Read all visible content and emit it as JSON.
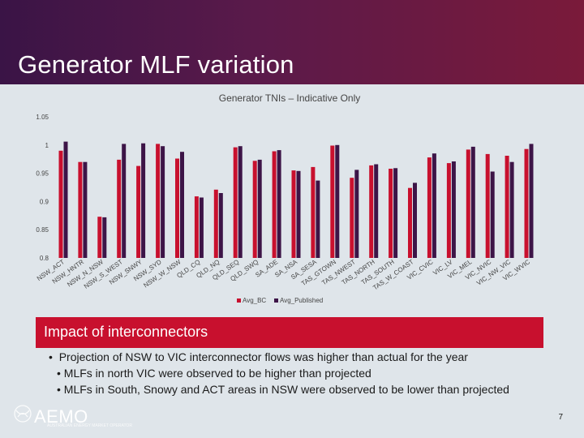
{
  "slide": {
    "title": "Generator MLF variation",
    "banner_title": "Impact of interconnectors",
    "bullets": [
      "Projection of NSW to VIC interconnector flows was higher than actual for the year",
      "MLFs in north VIC were observed to be higher than projected",
      "MLFs in South, Snowy and ACT areas in NSW were observed to be lower than projected"
    ],
    "logo_text": "AEMO",
    "logo_tagline": "AUSTRALIAN ENERGY MARKET OPERATOR",
    "page_number": "7"
  },
  "colors": {
    "series_bc": "#c8102e",
    "series_published": "#3d1447",
    "background": "#dfe5ea",
    "banner": "#c8102e"
  },
  "chart_data": {
    "type": "bar",
    "title": "Generator TNIs – Indicative Only",
    "categories": [
      "NSW_ACT",
      "NSW_HNTR",
      "NSW_N_NSW",
      "NSW_S_WEST",
      "NSW_SNWY",
      "NSW_SYD",
      "NSW_W_NSW",
      "QLD_CQ",
      "QLD_NQ",
      "QLD_SEQ",
      "QLD_SWQ",
      "SA_ADE",
      "SA_NSA",
      "SA_SESA",
      "TAS_GTOWN",
      "TAS_NWEST",
      "TAS_NORTH",
      "TAS_SOUTH",
      "TAS_W_COAST",
      "VIC_CVIC",
      "VIC_LV",
      "VIC_MEL",
      "VIC_NVIC",
      "VIC_NW_VIC",
      "VIC_WVIC"
    ],
    "series": [
      {
        "name": "Avg_BC",
        "values": [
          0.99,
          0.97,
          0.873,
          0.974,
          0.963,
          1.002,
          0.976,
          0.909,
          0.921,
          0.996,
          0.972,
          0.989,
          0.955,
          0.961,
          0.999,
          0.942,
          0.964,
          0.958,
          0.924,
          0.978,
          0.968,
          0.992,
          0.984,
          0.981,
          0.993
        ]
      },
      {
        "name": "Avg_Published",
        "values": [
          1.006,
          0.97,
          0.872,
          1.002,
          1.003,
          0.998,
          0.988,
          0.907,
          0.915,
          0.998,
          0.974,
          0.991,
          0.954,
          0.937,
          1.0,
          0.956,
          0.966,
          0.959,
          0.933,
          0.985,
          0.971,
          0.997,
          0.953,
          0.97,
          1.002
        ]
      }
    ],
    "ylim": [
      0.8,
      1.05
    ],
    "yticks": [
      "0.8",
      "0.85",
      "0.9",
      "0.95",
      "1",
      "1.05"
    ],
    "ytick_values": [
      0.8,
      0.85,
      0.9,
      0.95,
      1.0,
      1.05
    ],
    "grid": false,
    "legend_position": "bottom"
  }
}
